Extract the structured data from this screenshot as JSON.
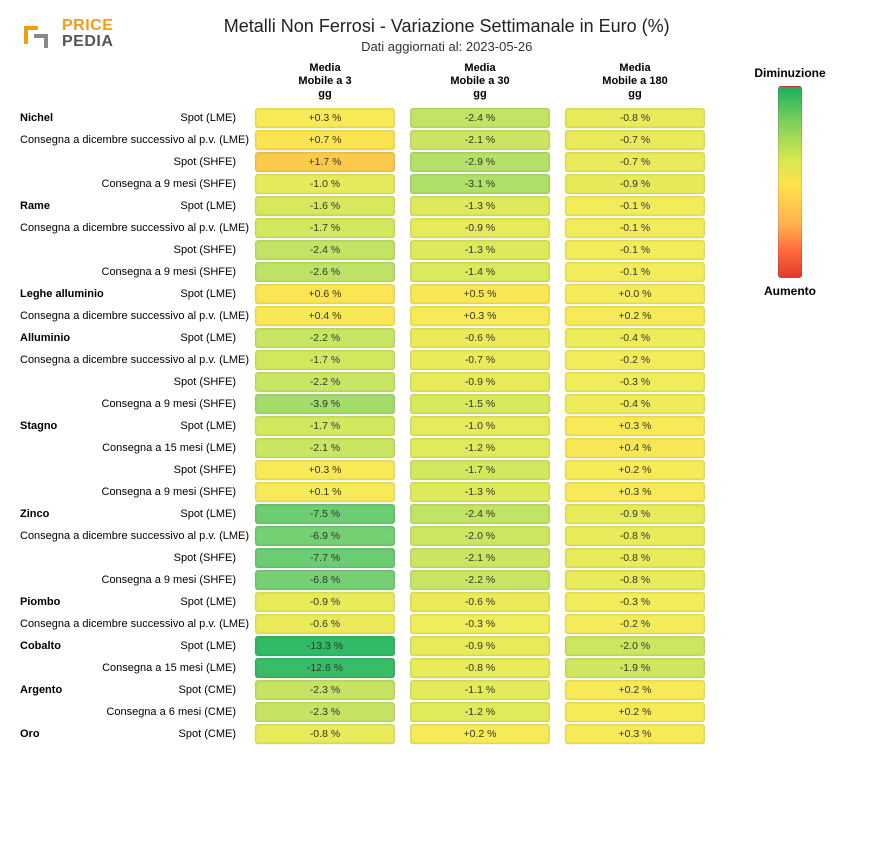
{
  "logo": {
    "brand_top": "PRICE",
    "brand_bottom": "PEDIA",
    "accent_color": "#f39c12",
    "text_color": "#555555"
  },
  "title": "Metalli Non Ferrosi - Variazione Settimanale in Euro (%)",
  "subtitle": "Dati aggiornati al: 2023-05-26",
  "columns": [
    "Media\nMobile a 3\ngg",
    "Media\nMobile a 30\ngg",
    "Media\nMobile a 180\ngg"
  ],
  "legend": {
    "top_label": "Diminuzione",
    "bottom_label": "Aumento",
    "gradient": [
      "#1aaf5d",
      "#7dcf5a",
      "#d7e84f",
      "#ffe14d",
      "#ffb24d",
      "#ff6b3d",
      "#e33b2e"
    ]
  },
  "color_scale": {
    "domain_min": -14,
    "domain_max": 2,
    "stops": [
      {
        "v": 2.0,
        "c": "#f8c24a"
      },
      {
        "v": 1.0,
        "c": "#ffe14d"
      },
      {
        "v": 0.0,
        "c": "#f5ec5a"
      },
      {
        "v": -1.0,
        "c": "#e5eb5a"
      },
      {
        "v": -2.0,
        "c": "#cde661"
      },
      {
        "v": -3.0,
        "c": "#b2e069"
      },
      {
        "v": -5.0,
        "c": "#92d870"
      },
      {
        "v": -7.0,
        "c": "#73cf73"
      },
      {
        "v": -10.0,
        "c": "#4fc46d"
      },
      {
        "v": -14.0,
        "c": "#2bb865"
      }
    ]
  },
  "rows": [
    {
      "group": "Nichel",
      "label": "Spot (LME)",
      "v": [
        0.3,
        -2.4,
        -0.8
      ]
    },
    {
      "label": "Consegna a dicembre successivo al p.v. (LME)",
      "v": [
        0.7,
        -2.1,
        -0.7
      ]
    },
    {
      "label": "Spot (SHFE)",
      "v": [
        1.7,
        -2.9,
        -0.7
      ]
    },
    {
      "label": "Consegna a 9 mesi (SHFE)",
      "v": [
        -1.0,
        -3.1,
        -0.9
      ]
    },
    {
      "group": "Rame",
      "label": "Spot (LME)",
      "v": [
        -1.6,
        -1.3,
        -0.1
      ]
    },
    {
      "label": "Consegna a dicembre successivo al p.v. (LME)",
      "v": [
        -1.7,
        -0.9,
        -0.1
      ]
    },
    {
      "label": "Spot (SHFE)",
      "v": [
        -2.4,
        -1.3,
        -0.1
      ]
    },
    {
      "label": "Consegna a 9 mesi (SHFE)",
      "v": [
        -2.6,
        -1.4,
        -0.1
      ]
    },
    {
      "group": "Leghe alluminio",
      "label": "Spot (LME)",
      "v": [
        0.6,
        0.5,
        0.0
      ]
    },
    {
      "label": "Consegna a dicembre successivo al p.v. (LME)",
      "v": [
        0.4,
        0.3,
        0.2
      ]
    },
    {
      "group": "Alluminio",
      "label": "Spot (LME)",
      "v": [
        -2.2,
        -0.6,
        -0.4
      ]
    },
    {
      "label": "Consegna a dicembre successivo al p.v. (LME)",
      "v": [
        -1.7,
        -0.7,
        -0.2
      ]
    },
    {
      "label": "Spot (SHFE)",
      "v": [
        -2.2,
        -0.9,
        -0.3
      ]
    },
    {
      "label": "Consegna a 9 mesi (SHFE)",
      "v": [
        -3.9,
        -1.5,
        -0.4
      ]
    },
    {
      "group": "Stagno",
      "label": "Spot (LME)",
      "v": [
        -1.7,
        -1.0,
        0.3
      ]
    },
    {
      "label": "Consegna a 15 mesi (LME)",
      "v": [
        -2.1,
        -1.2,
        0.4
      ]
    },
    {
      "label": "Spot (SHFE)",
      "v": [
        0.3,
        -1.7,
        0.2
      ]
    },
    {
      "label": "Consegna a 9 mesi (SHFE)",
      "v": [
        0.1,
        -1.3,
        0.3
      ]
    },
    {
      "group": "Zinco",
      "label": "Spot (LME)",
      "v": [
        -7.5,
        -2.4,
        -0.9
      ]
    },
    {
      "label": "Consegna a dicembre successivo al p.v. (LME)",
      "v": [
        -6.9,
        -2.0,
        -0.8
      ]
    },
    {
      "label": "Spot (SHFE)",
      "v": [
        -7.7,
        -2.1,
        -0.8
      ]
    },
    {
      "label": "Consegna a 9 mesi (SHFE)",
      "v": [
        -6.8,
        -2.2,
        -0.8
      ]
    },
    {
      "group": "Piombo",
      "label": "Spot (LME)",
      "v": [
        -0.9,
        -0.6,
        -0.3
      ]
    },
    {
      "label": "Consegna a dicembre successivo al p.v. (LME)",
      "v": [
        -0.6,
        -0.3,
        -0.2
      ]
    },
    {
      "group": "Cobalto",
      "label": "Spot (LME)",
      "v": [
        -13.3,
        -0.9,
        -2.0
      ]
    },
    {
      "label": "Consegna a 15 mesi (LME)",
      "v": [
        -12.6,
        -0.8,
        -1.9
      ]
    },
    {
      "group": "Argento",
      "label": "Spot (CME)",
      "v": [
        -2.3,
        -1.1,
        0.2
      ]
    },
    {
      "label": "Consegna a 6 mesi (CME)",
      "v": [
        -2.3,
        -1.2,
        0.2
      ]
    },
    {
      "group": "Oro",
      "label": "Spot (CME)",
      "v": [
        -0.8,
        0.2,
        0.3
      ]
    }
  ]
}
